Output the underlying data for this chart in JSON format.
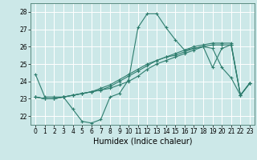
{
  "title": "",
  "xlabel": "Humidex (Indice chaleur)",
  "ylabel": "",
  "bg_color": "#cce8e8",
  "grid_color": "#ffffff",
  "line_color": "#2e7d6e",
  "xlim": [
    -0.5,
    23.5
  ],
  "ylim": [
    21.5,
    28.5
  ],
  "yticks": [
    22,
    23,
    24,
    25,
    26,
    27,
    28
  ],
  "xticks": [
    0,
    1,
    2,
    3,
    4,
    5,
    6,
    7,
    8,
    9,
    10,
    11,
    12,
    13,
    14,
    15,
    16,
    17,
    18,
    19,
    20,
    21,
    22,
    23
  ],
  "lines": [
    [
      24.4,
      23.1,
      23.1,
      23.1,
      22.4,
      21.7,
      21.6,
      21.8,
      23.1,
      23.3,
      24.1,
      27.1,
      27.9,
      27.9,
      27.1,
      26.4,
      25.8,
      25.9,
      26.0,
      25.9,
      24.8,
      24.2,
      23.2,
      23.9
    ],
    [
      23.1,
      23.0,
      23.0,
      23.1,
      23.2,
      23.3,
      23.4,
      23.5,
      23.6,
      23.8,
      24.0,
      24.3,
      24.7,
      25.0,
      25.2,
      25.4,
      25.6,
      25.8,
      26.0,
      26.1,
      26.1,
      26.1,
      23.2,
      23.9
    ],
    [
      23.1,
      23.0,
      23.0,
      23.1,
      23.2,
      23.3,
      23.4,
      23.5,
      23.7,
      24.0,
      24.3,
      24.6,
      24.9,
      25.2,
      25.4,
      25.5,
      25.7,
      25.9,
      26.0,
      24.8,
      25.9,
      26.1,
      23.2,
      23.9
    ],
    [
      23.1,
      23.0,
      23.0,
      23.1,
      23.2,
      23.3,
      23.4,
      23.6,
      23.8,
      24.1,
      24.4,
      24.7,
      25.0,
      25.2,
      25.4,
      25.6,
      25.8,
      26.0,
      26.1,
      26.2,
      26.2,
      26.2,
      23.2,
      23.9
    ]
  ],
  "tick_fontsize": 5.5,
  "xlabel_fontsize": 7,
  "marker_size": 3,
  "linewidth": 0.8
}
